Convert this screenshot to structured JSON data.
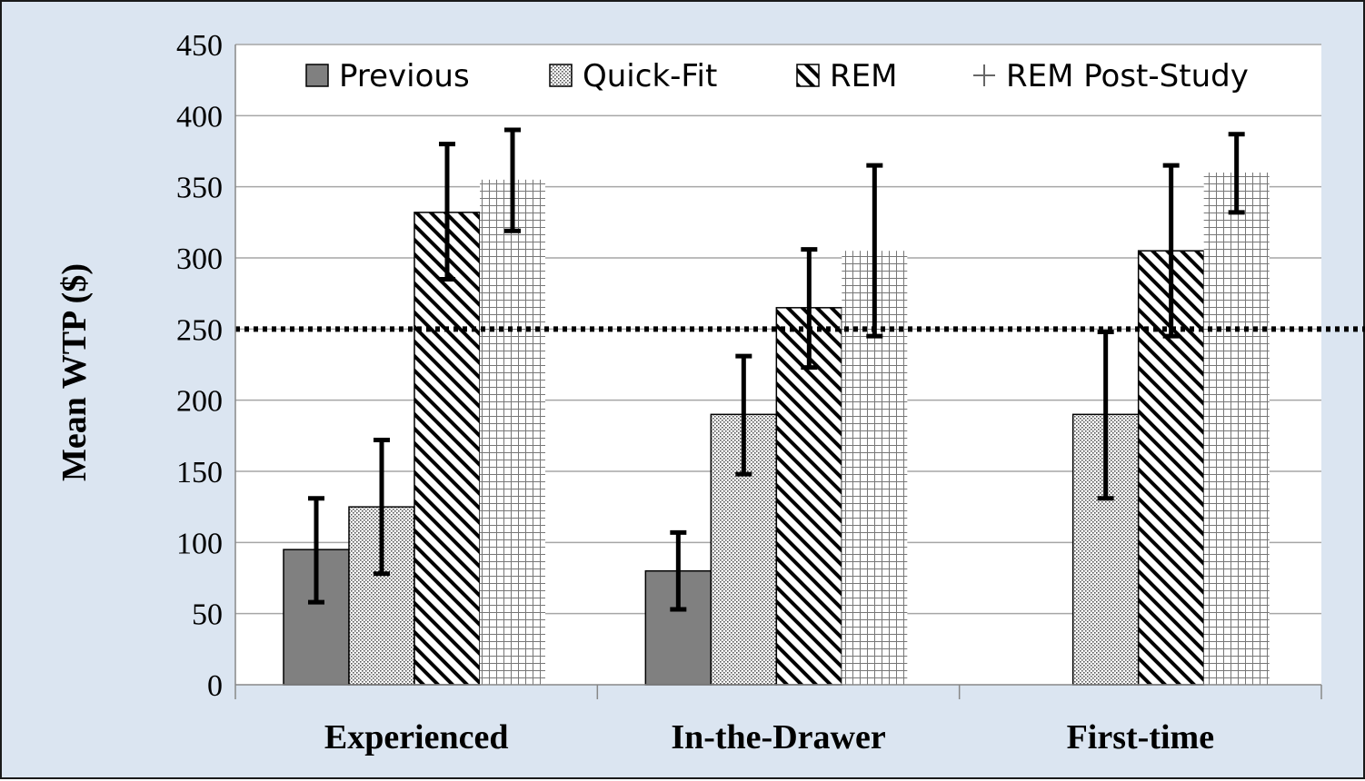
{
  "chart_data": {
    "type": "bar",
    "title": "",
    "xlabel": "",
    "ylabel": "Mean  WTP ($)",
    "ylim": [
      0,
      450
    ],
    "yticks": [
      0,
      50,
      100,
      150,
      200,
      250,
      300,
      350,
      400,
      450
    ],
    "grid": true,
    "legend_position": "top",
    "categories": [
      "Experienced",
      "In-the-Drawer",
      "First-time"
    ],
    "series": [
      {
        "name": "Previous",
        "pattern": "solid",
        "color": "#808080",
        "values": [
          95,
          80,
          null
        ],
        "err_low": [
          58,
          53,
          null
        ],
        "err_high": [
          131,
          107,
          null
        ]
      },
      {
        "name": "Quick-Fit",
        "pattern": "dots",
        "color": "#ffffff",
        "values": [
          125,
          190,
          190
        ],
        "err_low": [
          78,
          148,
          131
        ],
        "err_high": [
          172,
          231,
          248
        ]
      },
      {
        "name": "REM",
        "pattern": "diagonal",
        "color": "#ffffff",
        "values": [
          332,
          265,
          305
        ],
        "err_low": [
          285,
          223,
          245
        ],
        "err_high": [
          380,
          306,
          365
        ]
      },
      {
        "name": "REM Post-Study",
        "pattern": "grid",
        "color": "#ffffff",
        "values": [
          355,
          305,
          360
        ],
        "err_low": [
          319,
          245,
          332
        ],
        "err_high": [
          390,
          365,
          387
        ]
      }
    ],
    "reference_line": {
      "value": 250,
      "style": "dotted"
    }
  }
}
